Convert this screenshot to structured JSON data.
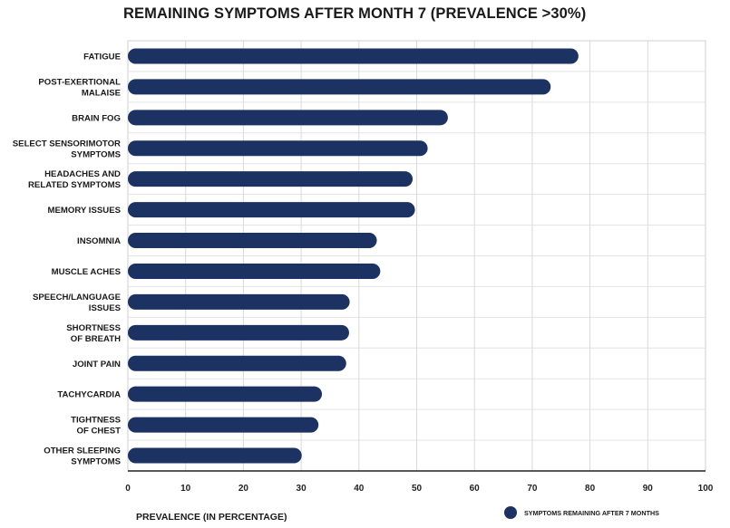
{
  "chart_data": {
    "type": "bar",
    "orientation": "horizontal",
    "title": "REMAINING SYMPTOMS AFTER MONTH 7 (PREVALENCE >30%)",
    "xlabel": "PREVALENCE (IN PERCENTAGE)",
    "ylabel": "",
    "xlim": [
      0,
      100
    ],
    "xticks": [
      "0",
      "10",
      "20",
      "30",
      "40",
      "50",
      "60",
      "70",
      "80",
      "90",
      "100"
    ],
    "grid": true,
    "legend_position": "bottom-right",
    "color": "#1b3263",
    "categories": [
      [
        "FATIGUE"
      ],
      [
        "POST-EXERTIONAL",
        "MALAISE"
      ],
      [
        "BRAIN FOG"
      ],
      [
        "SELECT SENSORIMOTOR",
        "SYMPTOMS"
      ],
      [
        "HEADACHES AND",
        "RELATED SYMPTOMS"
      ],
      [
        "MEMORY ISSUES"
      ],
      [
        "INSOMNIA"
      ],
      [
        "MUSCLE ACHES"
      ],
      [
        "SPEECH/LANGUAGE",
        "ISSUES"
      ],
      [
        "SHORTNESS",
        "OF BREATH"
      ],
      [
        "JOINT PAIN"
      ],
      [
        "TACHYCARDIA"
      ],
      [
        "TIGHTNESS",
        "OF CHEST"
      ],
      [
        "OTHER SLEEPING",
        "SYMPTOMS"
      ]
    ],
    "series": [
      {
        "name": "SYMPTOMS REMAINING AFTER 7 MONTHS",
        "values": [
          78.0,
          73.2,
          55.4,
          51.9,
          49.3,
          49.7,
          43.1,
          43.7,
          38.4,
          38.3,
          37.8,
          33.6,
          33.0,
          30.1
        ]
      }
    ]
  }
}
